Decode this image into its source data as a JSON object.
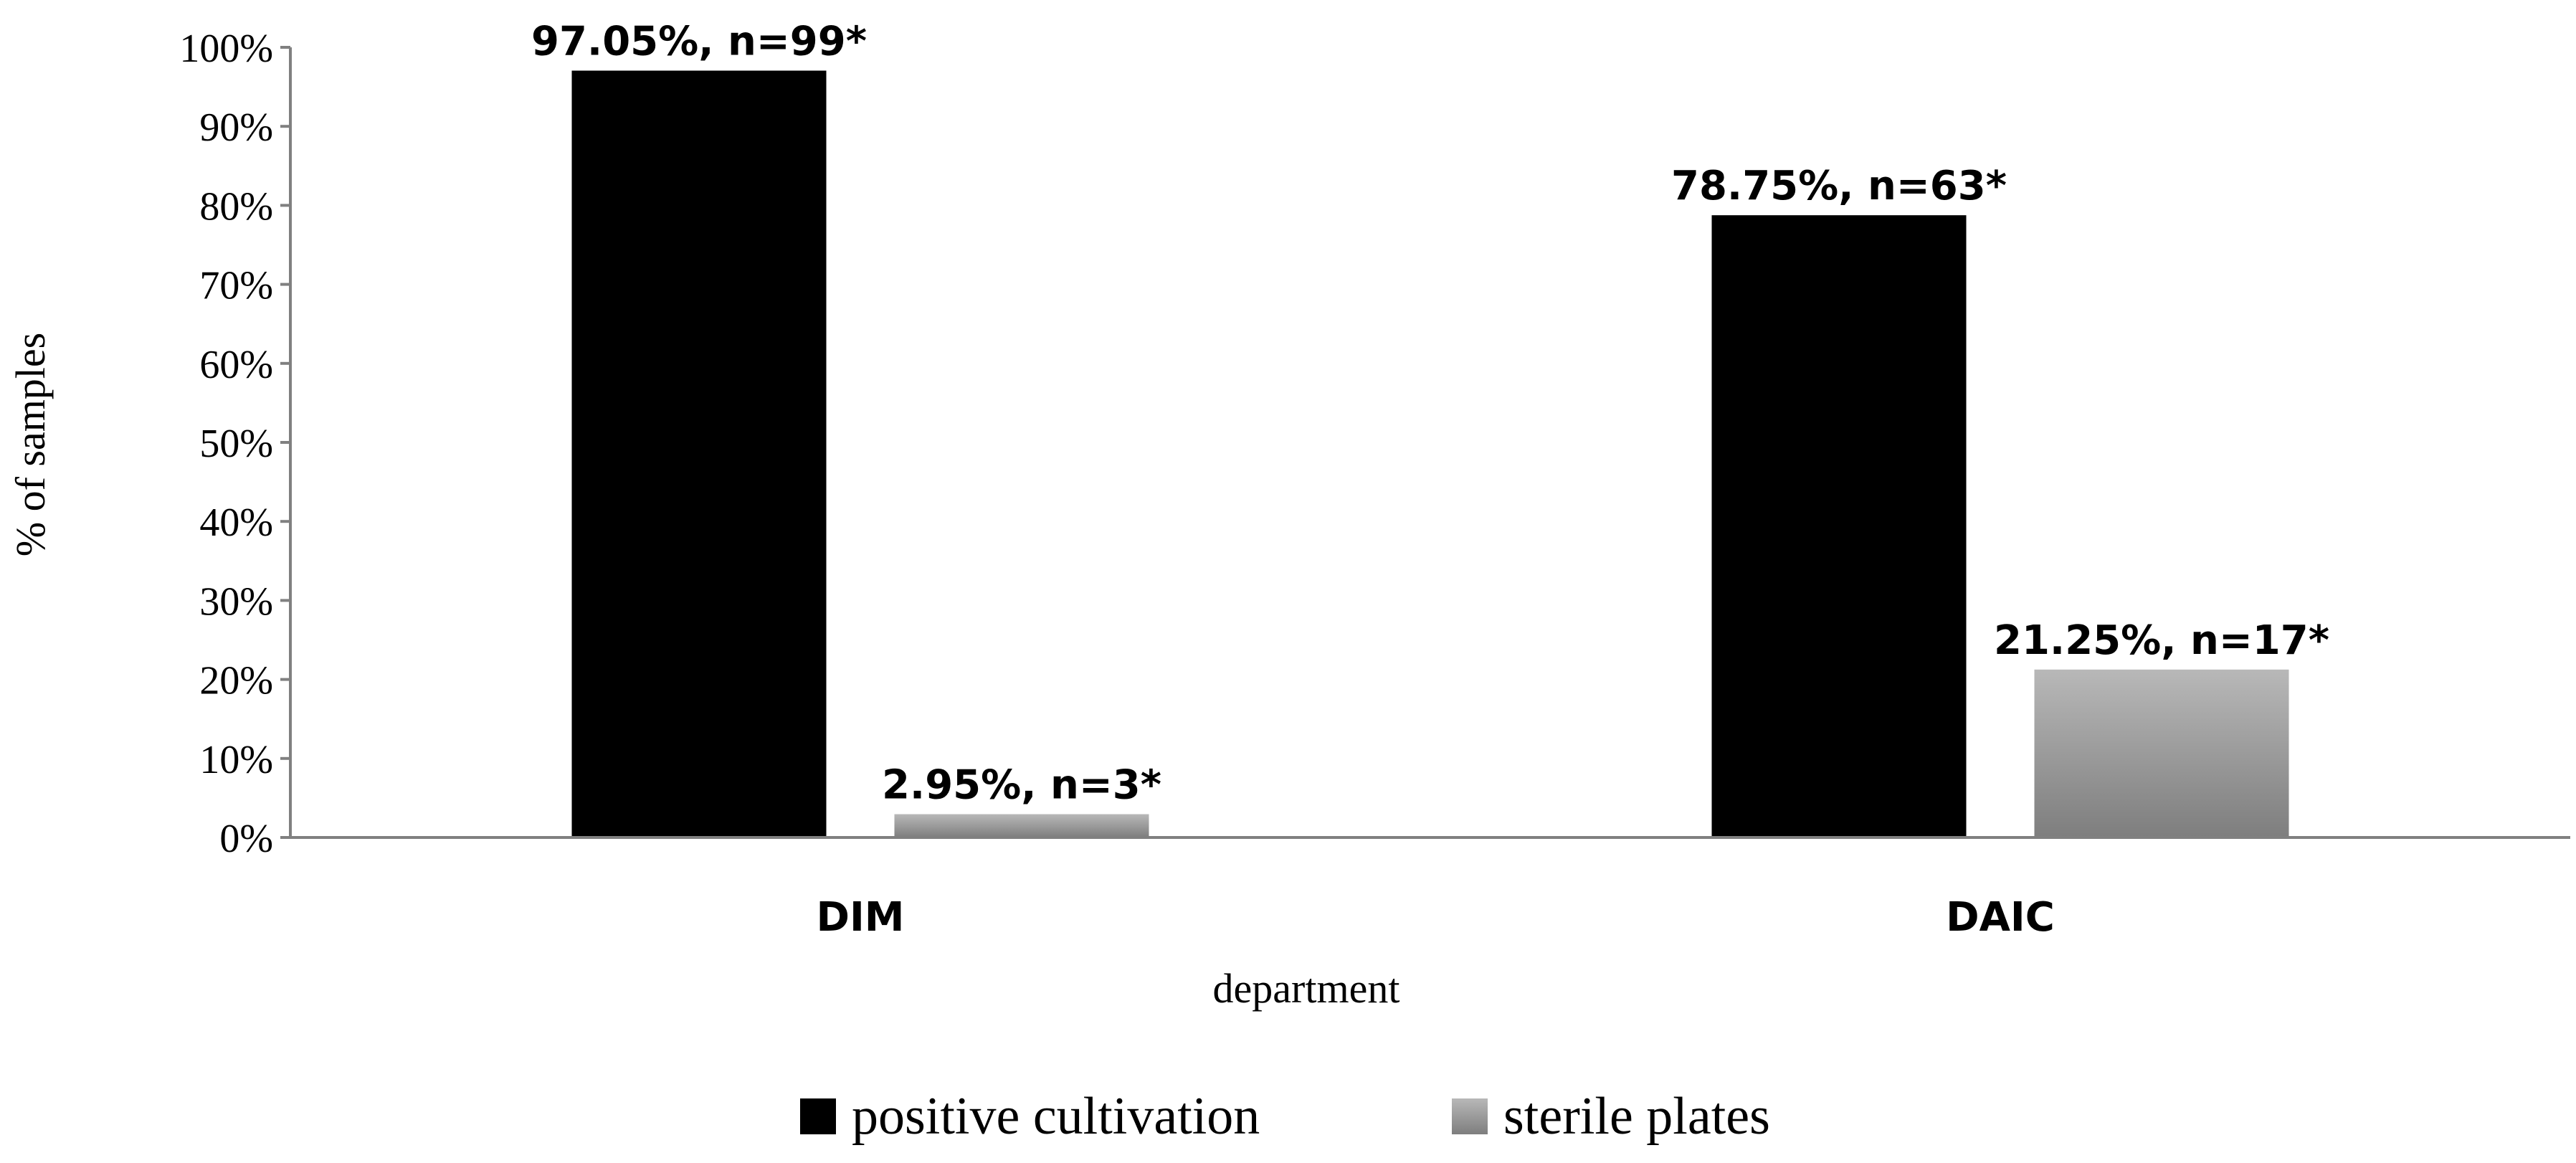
{
  "chart_data": {
    "type": "bar",
    "title": "",
    "xlabel": "department",
    "ylabel": "% of samples",
    "categories": [
      "DIM",
      "DAIC"
    ],
    "ylim": [
      0,
      100
    ],
    "yticks": [
      "0%",
      "10%",
      "20%",
      "30%",
      "40%",
      "50%",
      "60%",
      "70%",
      "80%",
      "90%",
      "100%"
    ],
    "grid": false,
    "legend_position": "bottom",
    "series": [
      {
        "name": "positive cultivation",
        "color": "#000000",
        "values": [
          97.05,
          78.75
        ],
        "labels": [
          "97.05%, n=99*",
          "78.75%, n=63*"
        ]
      },
      {
        "name": "sterile plates",
        "color": "#9a9a9a",
        "values": [
          2.95,
          21.25
        ],
        "labels": [
          "2.95%, n=3*",
          "21.25%, n=17*"
        ]
      }
    ]
  }
}
